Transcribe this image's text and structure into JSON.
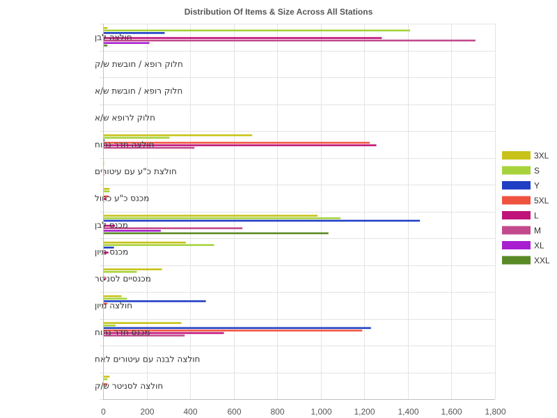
{
  "chart_data": {
    "type": "bar",
    "orientation": "horizontal",
    "title": "Distribution Of Items & Size Across All Stations",
    "xlabel": "",
    "ylabel": "",
    "xlim": [
      0,
      1800
    ],
    "x_ticks": [
      "0",
      "200",
      "400",
      "600",
      "800",
      "1,000",
      "1,200",
      "1,400",
      "1,600",
      "1,800"
    ],
    "grid": true,
    "legend_position": "right",
    "categories": [
      "חולצה לבן",
      "חלוק רופא / חובשת ש/ק",
      "חלוק רופא / חובשת ש/א",
      "חלוק לרופא ש/א",
      "חולצה חדר נתוח",
      "חולצת כ\"ע עם עיטורים",
      "מכנס כ\"ע כחול",
      "מכנס לבן",
      "מכנס מיון",
      "מכנסיים לסניטר",
      "חולצה מיון",
      "מכנס חדר נתוח",
      "חולצה לבנה עם עיטורים לאח",
      "חולצה לסניטר ש/ק"
    ],
    "series": [
      {
        "name": "3XL",
        "color": "#c8c21a",
        "values": [
          20,
          0,
          0,
          0,
          685,
          5,
          30,
          985,
          380,
          270,
          85,
          360,
          0,
          30
        ]
      },
      {
        "name": "S",
        "color": "#a6d33c",
        "values": [
          1410,
          0,
          0,
          0,
          305,
          5,
          30,
          1090,
          510,
          155,
          110,
          58,
          0,
          20
        ]
      },
      {
        "name": "Y",
        "color": "#1f3fc4",
        "values": [
          283,
          0,
          0,
          0,
          7,
          0,
          0,
          1455,
          50,
          0,
          472,
          1230,
          0,
          0
        ]
      },
      {
        "name": "5XL",
        "color": "#ef5340",
        "values": [
          0,
          0,
          0,
          0,
          1225,
          0,
          25,
          0,
          0,
          7,
          20,
          1190,
          0,
          20
        ]
      },
      {
        "name": "L",
        "color": "#c0137a",
        "values": [
          1280,
          0,
          0,
          0,
          1255,
          5,
          15,
          55,
          25,
          10,
          0,
          555,
          0,
          0
        ]
      },
      {
        "name": "M",
        "color": "#c24a8c",
        "values": [
          1710,
          0,
          0,
          0,
          420,
          5,
          5,
          640,
          0,
          0,
          0,
          375,
          0,
          0
        ]
      },
      {
        "name": "XL",
        "color": "#a81fd0",
        "values": [
          213,
          0,
          0,
          0,
          0,
          0,
          0,
          265,
          0,
          0,
          0,
          0,
          0,
          0
        ]
      },
      {
        "name": "XXL",
        "color": "#5a8a26",
        "values": [
          20,
          0,
          0,
          0,
          0,
          0,
          0,
          1035,
          0,
          0,
          0,
          0,
          0,
          0
        ]
      }
    ]
  }
}
